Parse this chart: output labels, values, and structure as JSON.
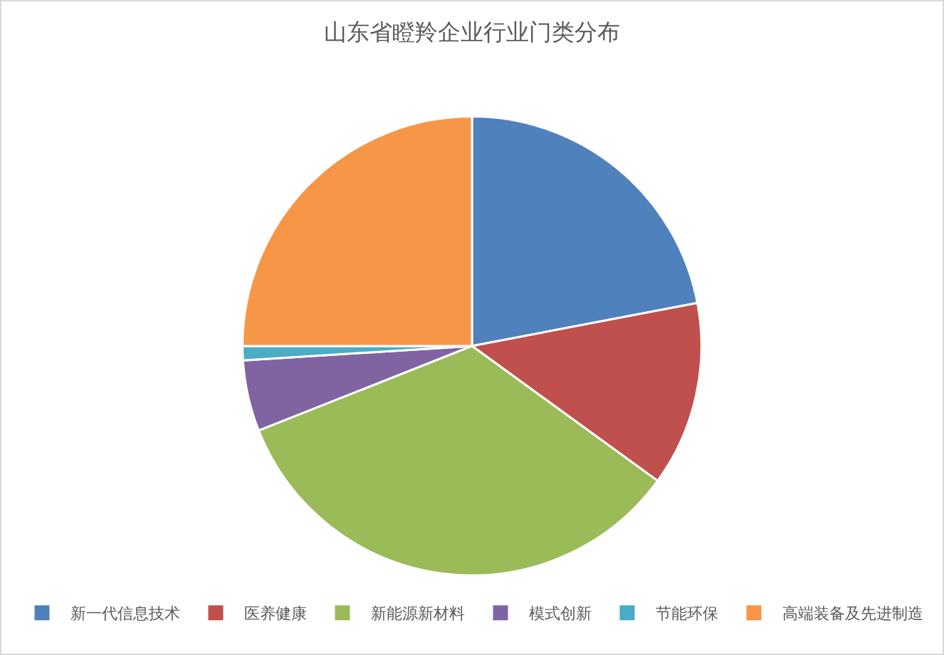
{
  "chart_data": {
    "type": "pie",
    "title": "山东省瞪羚企业行业门类分布",
    "categories": [
      "新一代信息技术",
      "医养健康",
      "新能源新材料",
      "模式创新",
      "节能环保",
      "高端装备及先进制造"
    ],
    "values": [
      22,
      13,
      34,
      5,
      1,
      25
    ],
    "colors": [
      "#4f81bd",
      "#c0504d",
      "#9bbb59",
      "#8064a2",
      "#4bacc6",
      "#f79646"
    ],
    "legend": "bottom"
  }
}
